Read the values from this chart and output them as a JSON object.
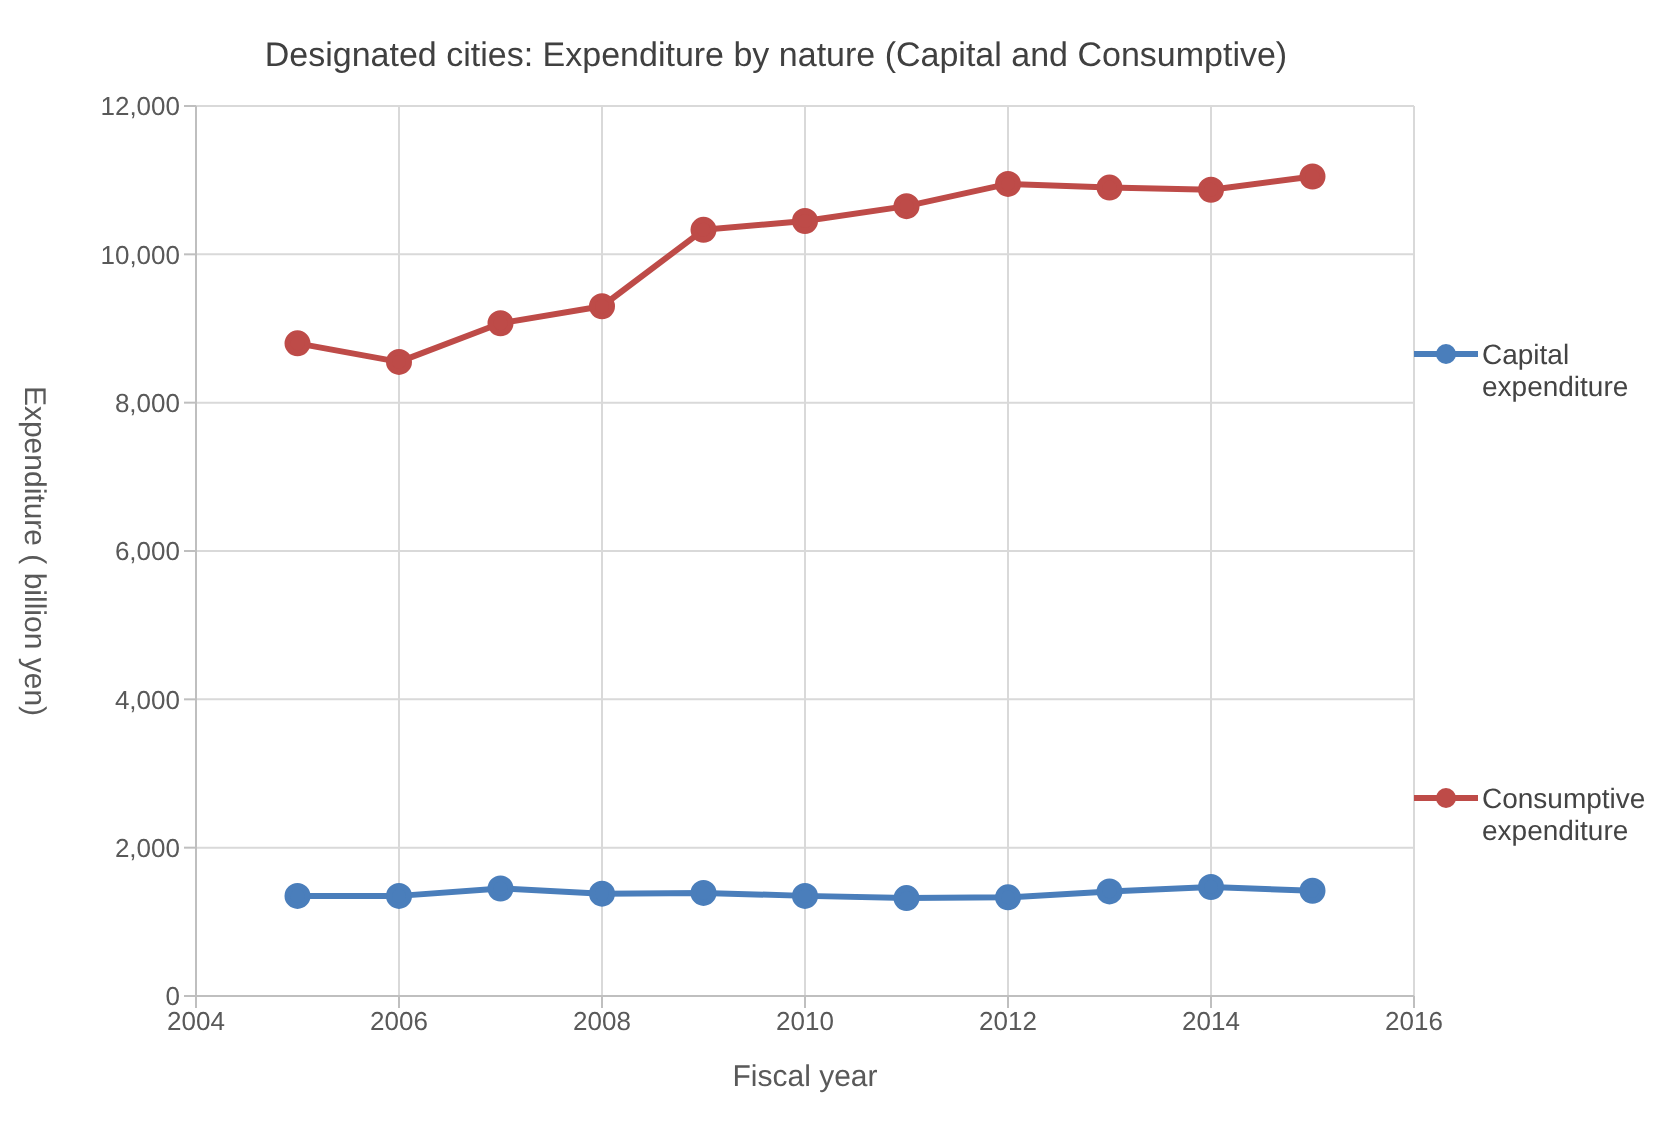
{
  "chart_data": {
    "type": "line",
    "title": "Designated cities: Expenditure by nature (Capital and Consumptive)",
    "xlabel": "Fiscal year",
    "ylabel": "Expenditure ( billion yen)",
    "x": [
      2005,
      2006,
      2007,
      2008,
      2009,
      2010,
      2011,
      2012,
      2013,
      2014,
      2015
    ],
    "series": [
      {
        "name": "Capital expenditure",
        "color": "#4a7ebb",
        "values": [
          1350,
          1350,
          1450,
          1380,
          1390,
          1350,
          1320,
          1330,
          1410,
          1470,
          1420
        ]
      },
      {
        "name": "Consumptive expenditure",
        "color": "#be4b48",
        "values": [
          8800,
          8550,
          9070,
          9300,
          10330,
          10450,
          10650,
          10950,
          10900,
          10870,
          11050
        ]
      }
    ],
    "xlim": [
      2004,
      2016
    ],
    "xticks": [
      2004,
      2006,
      2008,
      2010,
      2012,
      2014,
      2016
    ],
    "ylim": [
      0,
      12000
    ],
    "yticks": [
      0,
      {
        "value": 2000,
        "label": "2,000"
      },
      {
        "value": 4000,
        "label": "4,000"
      },
      {
        "value": 6000,
        "label": "6,000"
      },
      {
        "value": 8000,
        "label": "8,000"
      },
      {
        "value": 10000,
        "label": "10,000"
      },
      {
        "value": 12000,
        "label": "12,000"
      }
    ],
    "grid": true,
    "legend": "right",
    "marker": "circle",
    "line_style": "solid"
  }
}
